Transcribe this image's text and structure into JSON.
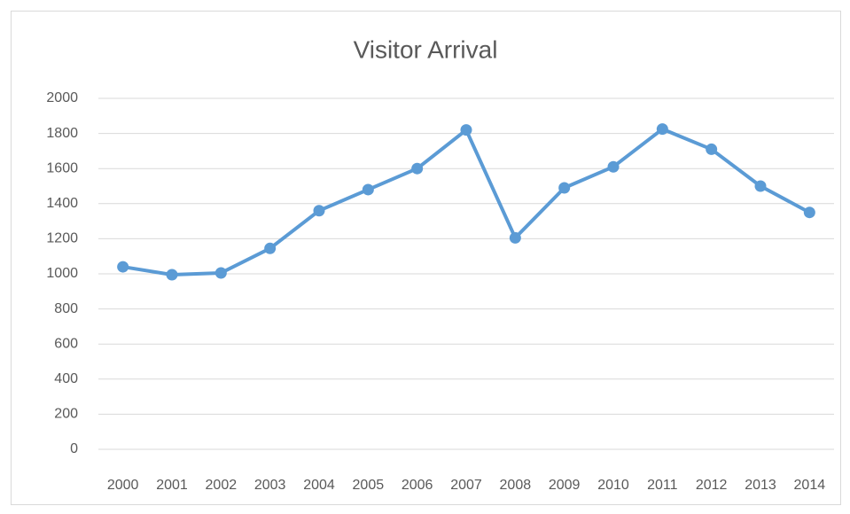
{
  "chart_data": {
    "type": "line",
    "title": "Visitor Arrival",
    "categories": [
      "2000",
      "2001",
      "2002",
      "2003",
      "2004",
      "2005",
      "2006",
      "2007",
      "2008",
      "2009",
      "2010",
      "2011",
      "2012",
      "2013",
      "2014"
    ],
    "series": [
      {
        "color": "#5b9bd5",
        "values": [
          1040,
          995,
          1005,
          1145,
          1360,
          1480,
          1600,
          1820,
          1205,
          1490,
          1610,
          1825,
          1710,
          1500,
          1350
        ]
      }
    ],
    "ylim": [
      0,
      2000
    ],
    "yticks": [
      0,
      200,
      400,
      600,
      800,
      1000,
      1200,
      1400,
      1600,
      1800,
      2000
    ],
    "grid": true
  }
}
